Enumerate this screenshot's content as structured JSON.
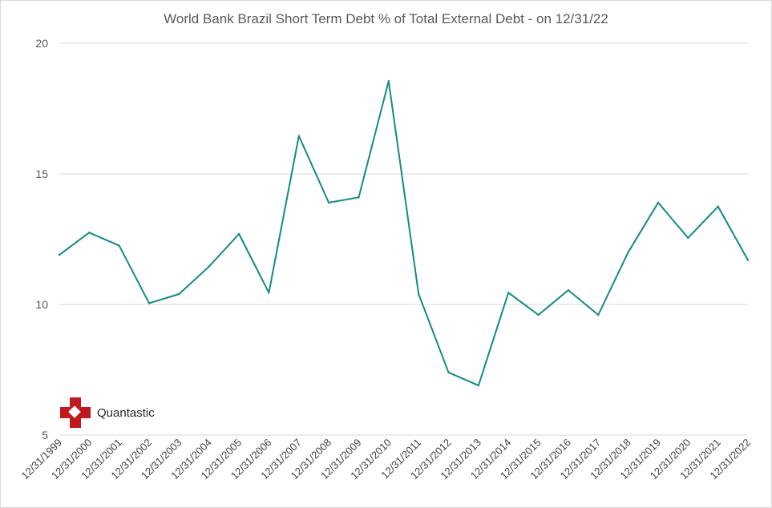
{
  "chart_data": {
    "type": "line",
    "title": "World Bank Brazil Short Term Debt % of Total External Debt -  on 12/31/22",
    "xlabel": "",
    "ylabel": "",
    "ylim": [
      5,
      20
    ],
    "yticks": [
      5,
      10,
      15,
      20
    ],
    "grid": true,
    "line_color": "#138a83",
    "categories": [
      "12/31/1999",
      "12/31/2000",
      "12/31/2001",
      "12/31/2002",
      "12/31/2003",
      "12/31/2004",
      "12/31/2005",
      "12/31/2006",
      "12/31/2007",
      "12/31/2008",
      "12/31/2009",
      "12/31/2010",
      "12/31/2011",
      "12/31/2012",
      "12/31/2013",
      "12/31/2014",
      "12/31/2015",
      "12/31/2016",
      "12/31/2017",
      "12/31/2018",
      "12/31/2019",
      "12/31/2020",
      "12/31/2021",
      "12/31/2022"
    ],
    "series": [
      {
        "values": [
          11.9,
          12.75,
          12.25,
          10.05,
          10.4,
          11.45,
          12.7,
          10.45,
          16.45,
          13.9,
          14.1,
          18.55,
          10.4,
          7.4,
          6.9,
          10.45,
          9.6,
          10.55,
          9.6,
          12.0,
          13.9,
          12.55,
          13.75,
          11.7
        ]
      }
    ]
  },
  "logo": {
    "text": "Quantastic",
    "color": "#c0191d"
  }
}
